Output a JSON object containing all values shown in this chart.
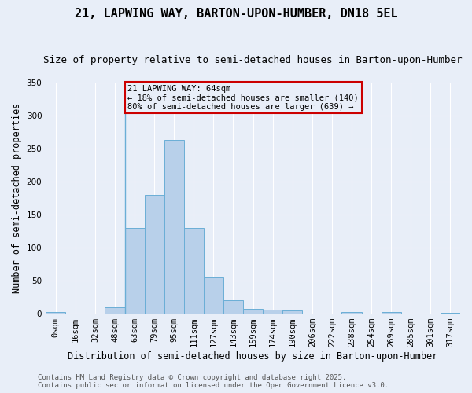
{
  "title": "21, LAPWING WAY, BARTON-UPON-HUMBER, DN18 5EL",
  "subtitle": "Size of property relative to semi-detached houses in Barton-upon-Humber",
  "xlabel": "Distribution of semi-detached houses by size in Barton-upon-Humber",
  "ylabel": "Number of semi-detached properties",
  "bar_color": "#b8d0ea",
  "bar_edge_color": "#6aaed6",
  "bg_color": "#e8eef8",
  "grid_color": "#ffffff",
  "categories": [
    "0sqm",
    "16sqm",
    "32sqm",
    "48sqm",
    "63sqm",
    "79sqm",
    "95sqm",
    "111sqm",
    "127sqm",
    "143sqm",
    "159sqm",
    "174sqm",
    "190sqm",
    "206sqm",
    "222sqm",
    "238sqm",
    "254sqm",
    "269sqm",
    "285sqm",
    "301sqm",
    "317sqm"
  ],
  "values": [
    2,
    0,
    0,
    10,
    130,
    180,
    263,
    130,
    55,
    20,
    7,
    6,
    5,
    0,
    0,
    2,
    0,
    3,
    0,
    0,
    1
  ],
  "ylim": [
    0,
    350
  ],
  "yticks": [
    0,
    50,
    100,
    150,
    200,
    250,
    300,
    350
  ],
  "property_line_bin": 4,
  "annotation_title": "21 LAPWING WAY: 64sqm",
  "annotation_line1": "← 18% of semi-detached houses are smaller (140)",
  "annotation_line2": "80% of semi-detached houses are larger (639) →",
  "annotation_box_color": "#cc0000",
  "footer_line1": "Contains HM Land Registry data © Crown copyright and database right 2025.",
  "footer_line2": "Contains public sector information licensed under the Open Government Licence v3.0.",
  "title_fontsize": 11,
  "subtitle_fontsize": 9,
  "xlabel_fontsize": 8.5,
  "ylabel_fontsize": 8.5,
  "tick_fontsize": 7.5,
  "annotation_fontsize": 7.5,
  "footer_fontsize": 6.5
}
